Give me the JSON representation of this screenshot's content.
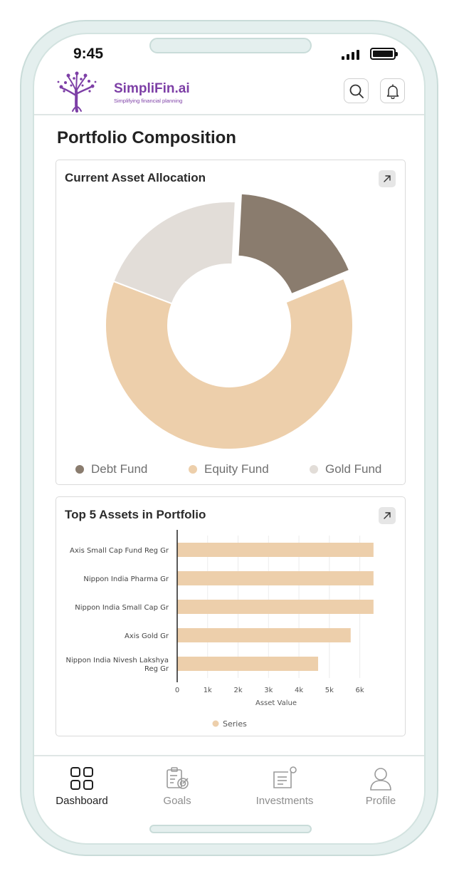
{
  "status_bar": {
    "time": "9:45"
  },
  "header": {
    "brand_name": "SimpliFin.ai",
    "tagline": "Simplifying financial planning",
    "search_icon": "search-icon",
    "notification_icon": "bell-icon"
  },
  "page": {
    "title": "Portfolio Composition"
  },
  "allocation_card": {
    "title": "Current Asset Allocation",
    "expand_icon": "arrow-up-right-icon"
  },
  "assets_card": {
    "title": "Top 5 Assets in Portfolio",
    "expand_icon": "arrow-up-right-icon"
  },
  "colors": {
    "debt": "#8a7c6e",
    "equity": "#edcfab",
    "gold": "#e2ddd8",
    "accent": "#7d3fa6"
  },
  "chart_data": [
    {
      "type": "pie",
      "title": "Current Asset Allocation",
      "categories": [
        "Debt Fund",
        "Equity Fund",
        "Gold Fund"
      ],
      "values": [
        18,
        62,
        20
      ],
      "unit": "%",
      "legend": "bottom",
      "donut": true,
      "exploded": [
        "Debt Fund"
      ]
    },
    {
      "type": "bar",
      "orientation": "horizontal",
      "title": "Top 5 Assets in Portfolio",
      "categories": [
        "Axis Small Cap Fund Reg Gr",
        "Nippon India Pharma Gr",
        "Nippon India Small Cap Gr",
        "Axis Gold Gr",
        "Nippon India Nivesh Lakshya Reg Gr"
      ],
      "category_lines": [
        [
          "Axis Small Cap Fund Reg Gr"
        ],
        [
          "Nippon India Pharma Gr"
        ],
        [
          "Nippon India Small Cap Gr"
        ],
        [
          "Axis Gold Gr"
        ],
        [
          "Nippon India Nivesh Lakshya",
          "Reg Gr"
        ]
      ],
      "series": [
        {
          "name": "Series",
          "values": [
            6450,
            6450,
            6450,
            5700,
            4630
          ]
        }
      ],
      "xlabel": "Asset Value",
      "xlim": [
        0,
        6500
      ],
      "ticks": [
        0,
        1000,
        2000,
        3000,
        4000,
        5000,
        6000
      ],
      "tick_labels": [
        "0",
        "1k",
        "2k",
        "3k",
        "4k",
        "5k",
        "6k"
      ],
      "grid": true,
      "legend": "bottom"
    }
  ],
  "bottom_nav": {
    "items": [
      {
        "label": "Dashboard",
        "icon": "grid-icon",
        "active": true
      },
      {
        "label": "Goals",
        "icon": "goals-icon",
        "active": false
      },
      {
        "label": "Investments",
        "icon": "investments-icon",
        "active": false
      },
      {
        "label": "Profile",
        "icon": "profile-icon",
        "active": false
      }
    ]
  }
}
